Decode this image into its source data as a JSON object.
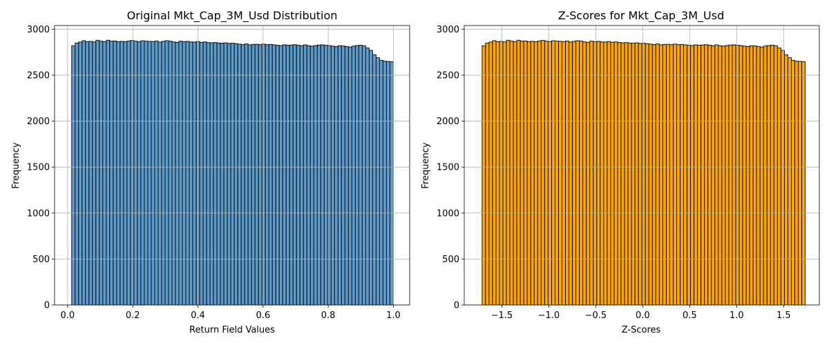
{
  "chart_data": [
    {
      "type": "bar",
      "title": "Original Mkt_Cap_3M_Usd Distribution",
      "xlabel": "Return Field Values",
      "ylabel": "Frequency",
      "xlim": [
        -0.04,
        1.05
      ],
      "ylim": [
        0,
        3040
      ],
      "xticks": [
        0.0,
        0.2,
        0.4,
        0.6,
        0.8,
        1.0
      ],
      "xtick_labels": [
        "0.0",
        "0.2",
        "0.4",
        "0.6",
        "0.8",
        "1.0"
      ],
      "yticks": [
        0,
        500,
        1000,
        1500,
        2000,
        2500,
        3000
      ],
      "ytick_labels": [
        "0",
        "500",
        "1000",
        "1500",
        "2000",
        "2500",
        "3000"
      ],
      "grid": true,
      "bar_color": "#4a90c4",
      "bar_opacity": 0.9,
      "edge_color": "#000000",
      "bin_start": 0.0125,
      "bin_end": 1.0,
      "values": [
        2820,
        2850,
        2860,
        2875,
        2865,
        2868,
        2862,
        2880,
        2870,
        2865,
        2880,
        2870,
        2872,
        2865,
        2868,
        2865,
        2872,
        2878,
        2870,
        2865,
        2875,
        2870,
        2868,
        2866,
        2872,
        2860,
        2868,
        2875,
        2870,
        2862,
        2858,
        2870,
        2865,
        2868,
        2862,
        2860,
        2866,
        2858,
        2862,
        2855,
        2852,
        2855,
        2850,
        2848,
        2852,
        2845,
        2848,
        2843,
        2838,
        2832,
        2840,
        2830,
        2835,
        2836,
        2832,
        2838,
        2832,
        2835,
        2830,
        2826,
        2822,
        2830,
        2826,
        2828,
        2832,
        2826,
        2820,
        2830,
        2820,
        2816,
        2822,
        2828,
        2830,
        2826,
        2822,
        2816,
        2812,
        2820,
        2818,
        2812,
        2806,
        2816,
        2822,
        2826,
        2820,
        2796,
        2770,
        2722,
        2690,
        2662,
        2652,
        2650,
        2646
      ]
    },
    {
      "type": "bar",
      "title": "Z-Scores for Mkt_Cap_3M_Usd",
      "xlabel": "Z-Scores",
      "ylabel": "Frequency",
      "xlim": [
        -1.9,
        1.88
      ],
      "ylim": [
        0,
        3040
      ],
      "xticks": [
        -1.5,
        -1.0,
        -0.5,
        0.0,
        0.5,
        1.0,
        1.5
      ],
      "xtick_labels": [
        "−1.5",
        "−1.0",
        "−0.5",
        "0.0",
        "0.5",
        "1.0",
        "1.5"
      ],
      "yticks": [
        0,
        500,
        1000,
        1500,
        2000,
        2500,
        3000
      ],
      "ytick_labels": [
        "0",
        "500",
        "1000",
        "1500",
        "2000",
        "2500",
        "3000"
      ],
      "grid": true,
      "bar_color": "#ffa500",
      "bar_opacity": 1.0,
      "edge_color": "#000000",
      "bin_start": -1.71,
      "bin_end": 1.73,
      "values": [
        2820,
        2850,
        2860,
        2875,
        2865,
        2868,
        2862,
        2880,
        2870,
        2865,
        2880,
        2870,
        2872,
        2865,
        2868,
        2865,
        2872,
        2878,
        2870,
        2865,
        2875,
        2870,
        2868,
        2866,
        2872,
        2860,
        2868,
        2875,
        2870,
        2862,
        2858,
        2870,
        2865,
        2868,
        2862,
        2860,
        2866,
        2858,
        2862,
        2855,
        2852,
        2855,
        2850,
        2848,
        2852,
        2845,
        2848,
        2843,
        2838,
        2832,
        2840,
        2830,
        2835,
        2836,
        2832,
        2838,
        2832,
        2835,
        2830,
        2826,
        2822,
        2830,
        2826,
        2828,
        2832,
        2826,
        2820,
        2830,
        2820,
        2816,
        2822,
        2828,
        2830,
        2826,
        2822,
        2816,
        2812,
        2820,
        2818,
        2812,
        2806,
        2816,
        2822,
        2826,
        2820,
        2796,
        2770,
        2722,
        2690,
        2662,
        2652,
        2650,
        2646
      ]
    }
  ]
}
